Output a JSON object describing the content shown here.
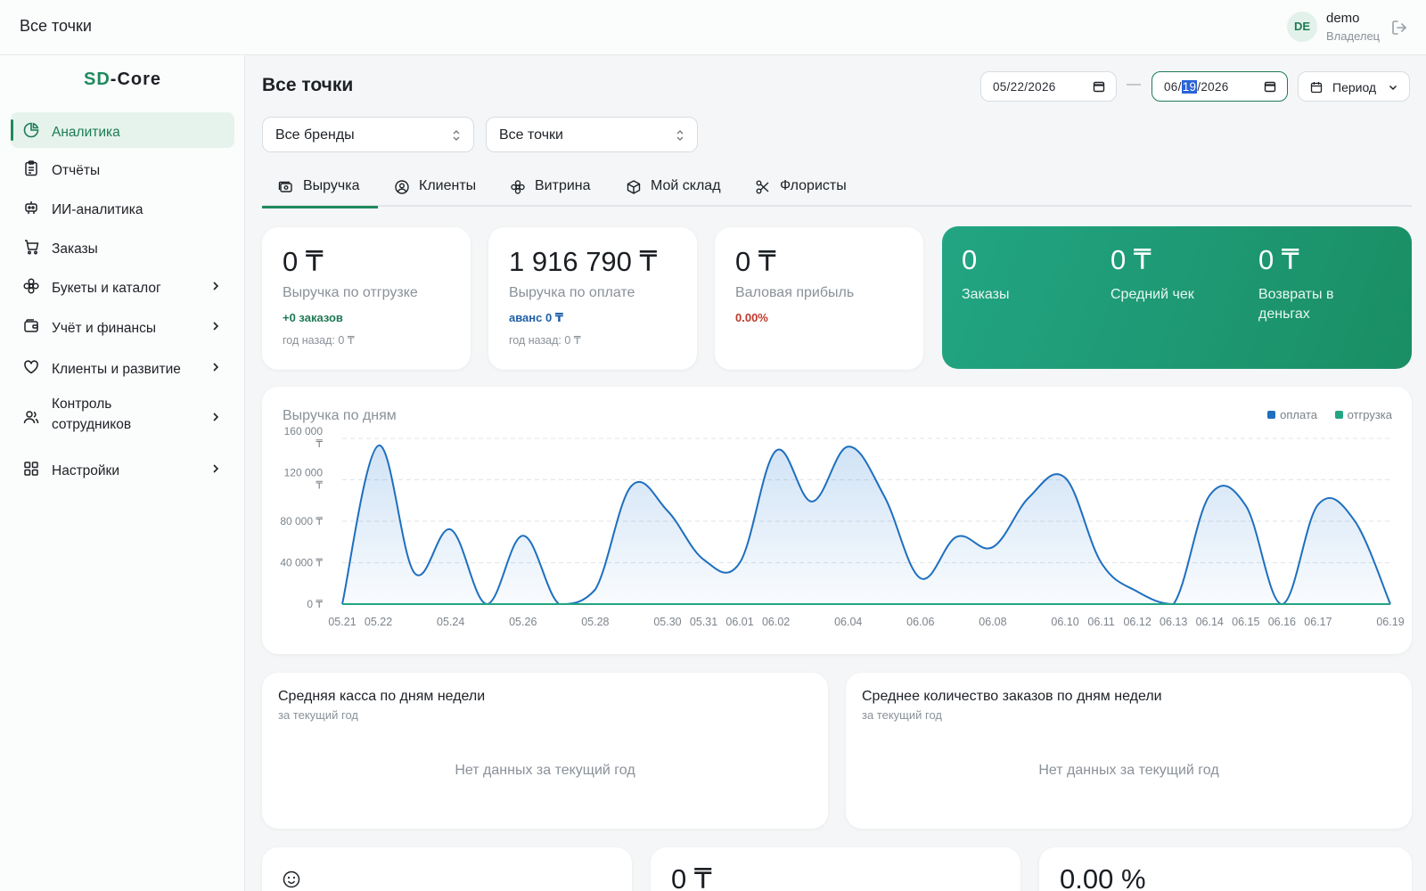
{
  "topbar": {
    "title": "Все точки",
    "user_initials": "DE",
    "user_name": "demo",
    "user_role": "Владелец"
  },
  "sidebar": {
    "brand_prefix": "SD",
    "brand_rest": "-Core",
    "items": [
      {
        "label": "Аналитика",
        "icon": "pie-chart-icon",
        "active": true
      },
      {
        "label": "Отчёты",
        "icon": "clipboard-icon"
      },
      {
        "label": "ИИ-аналитика",
        "icon": "robot-icon"
      },
      {
        "label": "Заказы",
        "icon": "cart-icon"
      },
      {
        "label": "Букеты и каталог",
        "icon": "flower-icon",
        "has_children": true
      },
      {
        "label": "Учёт и финансы",
        "icon": "wallet-icon",
        "has_children": true
      },
      {
        "label": "Клиенты и развитие",
        "icon": "heart-icon",
        "has_children": true
      },
      {
        "label": "Контроль сотрудников",
        "icon": "users-icon",
        "has_children": true
      },
      {
        "label": "Настройки",
        "icon": "grid-icon",
        "has_children": true
      }
    ]
  },
  "main": {
    "title": "Все точки",
    "date_from": "05/22/2026",
    "date_to": {
      "month": "06",
      "day": "19",
      "year": "2026"
    },
    "period_label": "Период",
    "brand_select": "Все бренды",
    "point_select": "Все точки"
  },
  "tabs": [
    {
      "label": "Выручка",
      "icon": "cash-icon",
      "active": true
    },
    {
      "label": "Клиенты",
      "icon": "user-circle-icon"
    },
    {
      "label": "Витрина",
      "icon": "flower-icon"
    },
    {
      "label": "Мой склад",
      "icon": "box-icon"
    },
    {
      "label": "Флористы",
      "icon": "scissors-icon"
    }
  ],
  "kpis": [
    {
      "value": "0 ₸",
      "label": "Выручка по отгрузке",
      "sub": "+0 заказов",
      "sub_color": "#1f7a55",
      "year_ago": "год назад: 0 ₸"
    },
    {
      "value": "1 916 790 ₸",
      "label": "Выручка по оплате",
      "sub": "аванс 0 ₸",
      "sub_color": "#1e5fa8",
      "year_ago": "год назад: 0 ₸"
    },
    {
      "value": "0 ₸",
      "label": "Валовая прибыль",
      "sub": "0.00%",
      "sub_color": "#c0392b",
      "year_ago": ""
    }
  ],
  "kpi_green": [
    {
      "value": "0",
      "label": "Заказы"
    },
    {
      "value": "0 ₸",
      "label": "Средний чек"
    },
    {
      "value": "0 ₸",
      "label": "Возвраты в деньгах"
    }
  ],
  "chart": {
    "title": "Выручка по дням",
    "legend": [
      {
        "name": "оплата",
        "color": "#1e6fbf"
      },
      {
        "name": "отгрузка",
        "color": "#22a583"
      }
    ]
  },
  "chart_data": {
    "type": "area",
    "x": [
      "05.21",
      "05.22",
      "05.23",
      "05.24",
      "05.25",
      "05.26",
      "05.27",
      "05.28",
      "05.29",
      "05.30",
      "05.31",
      "06.01",
      "06.02",
      "06.03",
      "06.04",
      "06.05",
      "06.06",
      "06.07",
      "06.08",
      "06.09",
      "06.10",
      "06.11",
      "06.12",
      "06.13",
      "06.14",
      "06.15",
      "06.16",
      "06.17",
      "06.18",
      "06.19"
    ],
    "x_tick_labels": [
      "05.21",
      "05.22",
      "05.24",
      "05.26",
      "05.28",
      "05.30",
      "05.31",
      "06.01",
      "06.02",
      "06.04",
      "06.06",
      "06.08",
      "06.10",
      "06.11",
      "06.12",
      "06.13",
      "06.14",
      "06.15",
      "06.16",
      "06.17",
      "06.19"
    ],
    "series": [
      {
        "name": "оплата",
        "values": [
          0,
          153000,
          30000,
          72000,
          0,
          66000,
          0,
          14000,
          114000,
          90000,
          43000,
          40000,
          148000,
          99000,
          152000,
          104000,
          25000,
          65000,
          55000,
          103000,
          122000,
          40000,
          12000,
          0,
          105000,
          95000,
          0,
          96000,
          81000,
          0
        ]
      },
      {
        "name": "отгрузка",
        "values": [
          0,
          0,
          0,
          0,
          0,
          0,
          0,
          0,
          0,
          0,
          0,
          0,
          0,
          0,
          0,
          0,
          0,
          0,
          0,
          0,
          0,
          0,
          0,
          0,
          0,
          0,
          0,
          0,
          0,
          0
        ]
      }
    ],
    "ylim": [
      0,
      160000
    ],
    "y_ticks": [
      "0 ₸",
      "40 000 ₸",
      "80 000 ₸",
      "120 000 ₸",
      "160 000 ₸"
    ],
    "grid": true,
    "legend_position": "top-right"
  },
  "cards": [
    {
      "title": "Средняя касса по дням недели",
      "subtitle": "за текущий год",
      "empty": "Нет данных за текущий год"
    },
    {
      "title": "Среднее количество заказов по дням недели",
      "subtitle": "за текущий год",
      "empty": "Нет данных за текущий год"
    }
  ],
  "bottom": [
    {
      "icon": "smile-icon"
    },
    {
      "value": "0 ₸"
    },
    {
      "value": "0.00 %"
    }
  ]
}
